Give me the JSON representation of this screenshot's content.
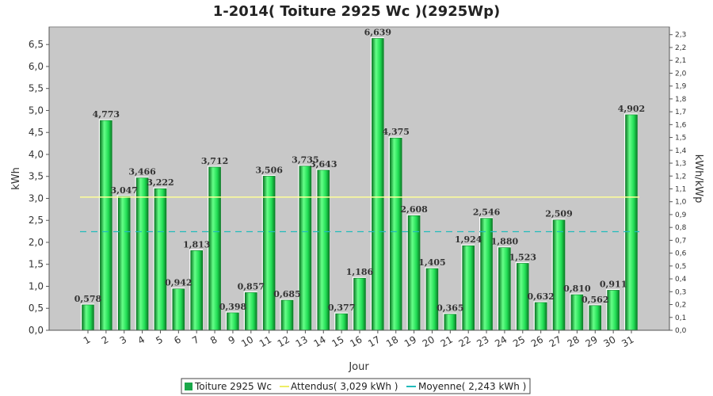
{
  "chart_data": {
    "type": "bar",
    "title": "1-2014( Toiture 2925 Wc )(2925Wp)",
    "xlabel": "Jour",
    "ylabel": "kWh",
    "y2label": "kWh/kWp",
    "categories": [
      "1",
      "2",
      "3",
      "4",
      "5",
      "6",
      "7",
      "8",
      "9",
      "10",
      "11",
      "12",
      "13",
      "14",
      "15",
      "16",
      "17",
      "18",
      "19",
      "20",
      "21",
      "22",
      "23",
      "24",
      "25",
      "26",
      "27",
      "28",
      "29",
      "30",
      "31"
    ],
    "series": [
      {
        "name": "Toiture 2925 Wc",
        "values": [
          0.578,
          4.773,
          3.047,
          3.466,
          3.222,
          0.942,
          1.813,
          3.712,
          0.398,
          0.857,
          3.506,
          0.685,
          3.735,
          3.643,
          0.377,
          1.186,
          6.639,
          4.375,
          2.608,
          1.405,
          0.365,
          1.924,
          2.546,
          1.88,
          1.523,
          0.632,
          2.509,
          0.81,
          0.562,
          0.911,
          4.902
        ],
        "labels": [
          "0,578",
          "4,773",
          "3,047",
          "3,466",
          "3,222",
          "0,942",
          "1,813",
          "3,712",
          "0,398",
          "0,857",
          "3,506",
          "0,685",
          "3,735",
          "3,643",
          "0,377",
          "1,186",
          "6,639",
          "4,375",
          "2,608",
          "1,405",
          "0,365",
          "1,924",
          "2,546",
          "1,880",
          "1,523",
          "0,632",
          "2,509",
          "0,810",
          "0,562",
          "0,911",
          "4,902"
        ]
      }
    ],
    "reference_lines": [
      {
        "name": "Attendus( 3,029 kWh )",
        "value": 3.029
      },
      {
        "name": "Moyenne( 2,243 kWh )",
        "value": 2.243
      }
    ],
    "ylim": [
      0,
      6.9
    ],
    "yticks": [
      "0,0",
      "0,5",
      "1,0",
      "1,5",
      "2,0",
      "2,5",
      "3,0",
      "3,5",
      "4,0",
      "4,5",
      "5,0",
      "5,5",
      "6,0",
      "6,5"
    ],
    "y2lim": [
      0,
      2.36
    ],
    "y2ticks": [
      "0,0",
      "0,1",
      "0,2",
      "0,3",
      "0,4",
      "0,5",
      "0,6",
      "0,7",
      "0,8",
      "0,9",
      "1,0",
      "1,1",
      "1,2",
      "1,3",
      "1,4",
      "1,5",
      "1,6",
      "1,7",
      "1,8",
      "1,9",
      "2,0",
      "2,1",
      "2,2",
      "2,3"
    ],
    "grid": false,
    "legend_position": "bottom"
  },
  "colors": {
    "plot_bg": "#c8c8c8",
    "bar_fill": "#22dd55",
    "bar_highlight": "#66ff88",
    "bar_edge": "#0a7a25",
    "expected_line": "#ffff99",
    "average_line": "#22bbbb",
    "legend_swatch": "#1aa84a"
  }
}
